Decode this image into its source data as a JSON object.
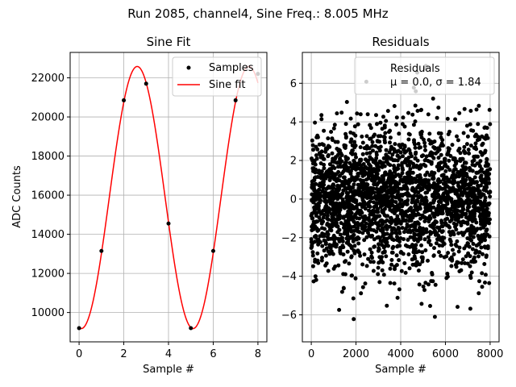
{
  "figure": {
    "suptitle": "Run 2085, channel4, Sine Freq.: 8.005 MHz"
  },
  "chart_data": [
    {
      "type": "scatter+line",
      "title": "Sine Fit",
      "xlabel": "Sample #",
      "ylabel": "ADC Counts",
      "xlim": [
        -0.4,
        8.4
      ],
      "ylim": [
        8500,
        23300
      ],
      "xticks": [
        0,
        2,
        4,
        6,
        8
      ],
      "yticks": [
        10000,
        12000,
        14000,
        16000,
        18000,
        20000,
        22000
      ],
      "grid": true,
      "legend_position": "top-right",
      "series": [
        {
          "name": "Samples",
          "kind": "scatter",
          "color": "#000000",
          "x": [
            0,
            1,
            2,
            3,
            4,
            5,
            6,
            7,
            8
          ],
          "y": [
            9200,
            13150,
            20850,
            21700,
            14550,
            9200,
            13150,
            20850,
            22200
          ]
        },
        {
          "name": "Sine fit",
          "kind": "line",
          "color": "#ff0000",
          "model": {
            "offset": 15880,
            "amplitude": 6700,
            "period_samples": 4.997,
            "peak_at_sample": 2.6,
            "x_range": [
              0,
              8
            ]
          }
        }
      ]
    },
    {
      "type": "scatter",
      "title": "Residuals",
      "xlabel": "Sample #",
      "ylabel": "",
      "xlim": [
        -400,
        8400
      ],
      "ylim": [
        -7.4,
        7.6
      ],
      "xticks": [
        0,
        2000,
        4000,
        6000,
        8000
      ],
      "yticks": [
        -6,
        -4,
        -2,
        0,
        2,
        4,
        6
      ],
      "grid": true,
      "legend_position": "top-right",
      "series": [
        {
          "name": "Residuals",
          "name_line2": "μ = 0.0, σ = 1.84",
          "kind": "scatter",
          "color": "#000000",
          "distribution": {
            "mean": 0.0,
            "sigma": 1.84,
            "x_range": [
              0,
              8000
            ]
          }
        }
      ]
    }
  ]
}
